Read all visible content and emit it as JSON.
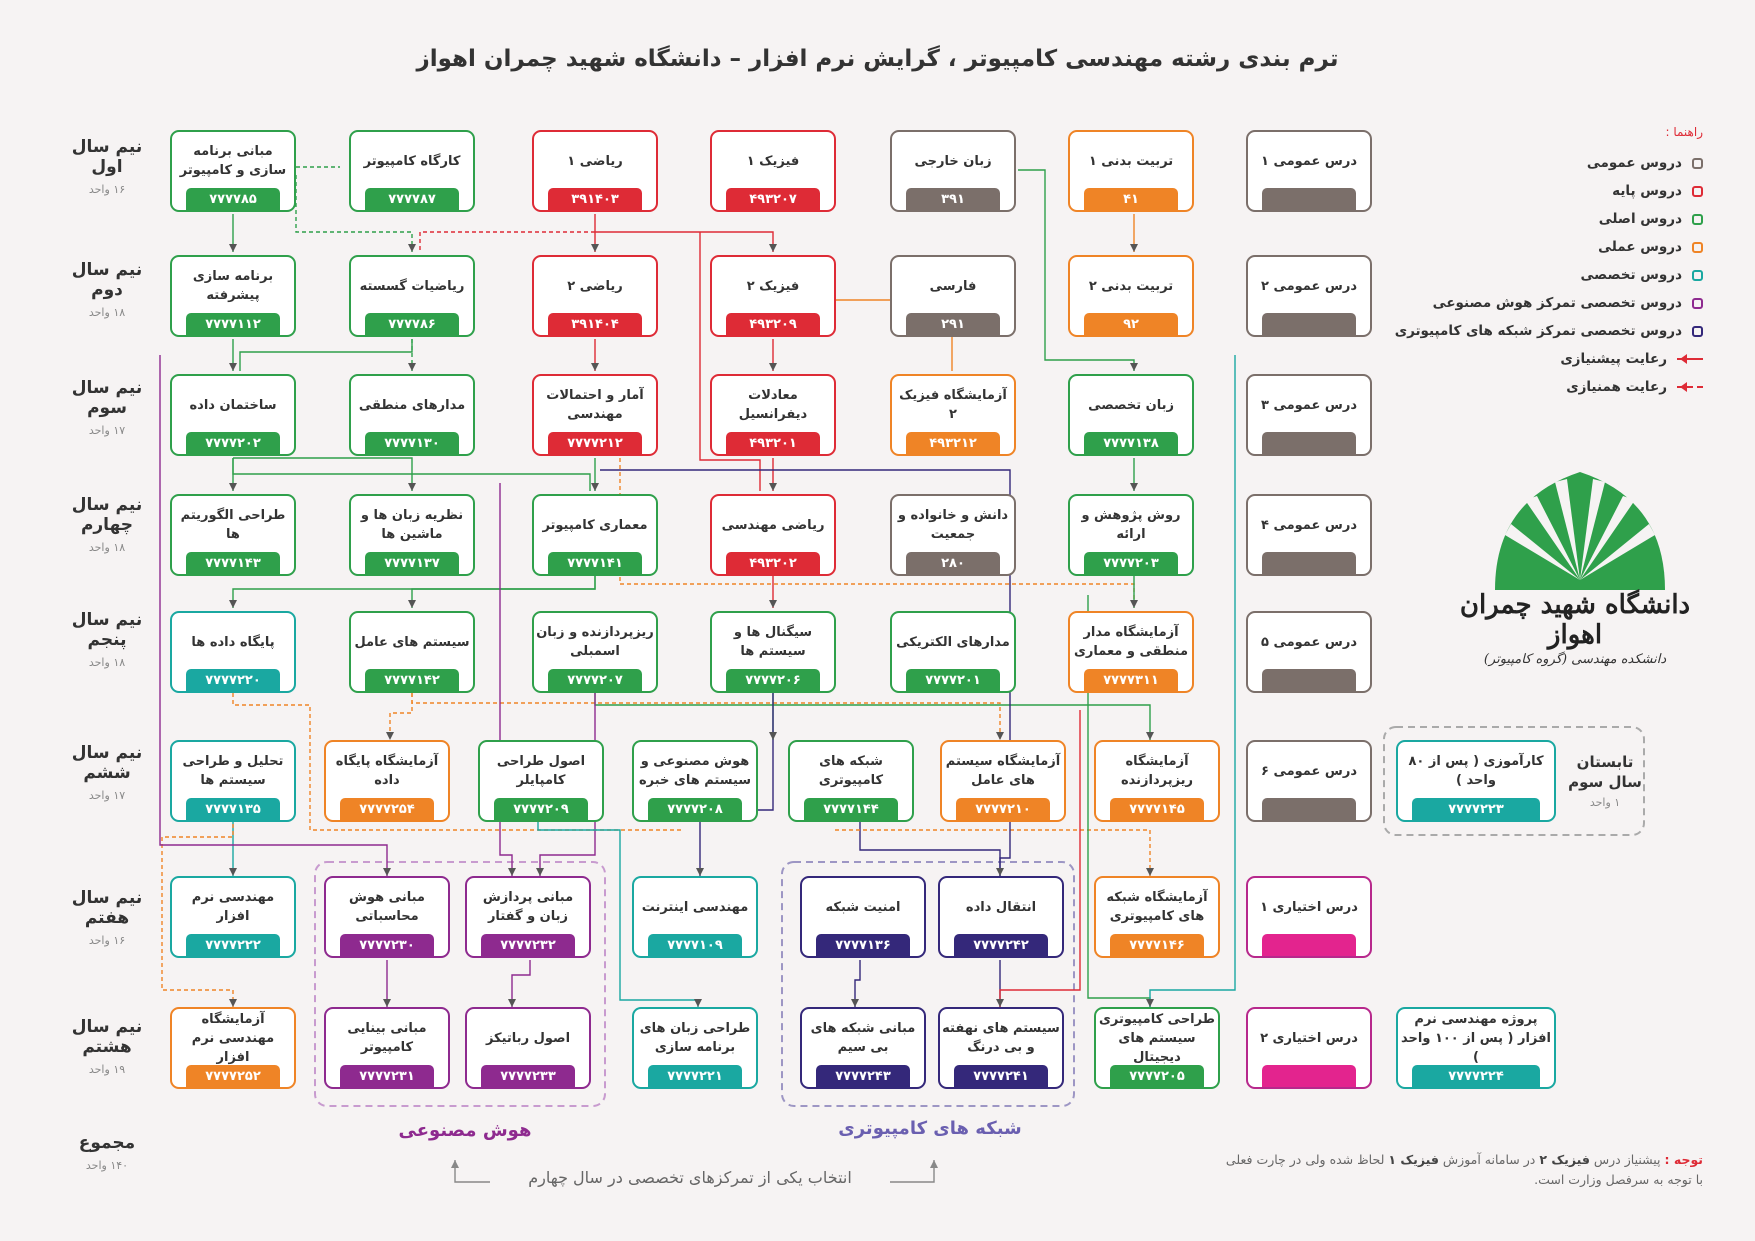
{
  "title": "ترم بندی رشته مهندسی کامپیوتر ، گرایش نرم افزار – دانشگاه شهید چمران اهواز",
  "rows": [
    {
      "title": "نیم سال اول",
      "units": "۱۶ واحد"
    },
    {
      "title": "نیم سال دوم",
      "units": "۱۸ واحد"
    },
    {
      "title": "نیم سال سوم",
      "units": "۱۷ واحد"
    },
    {
      "title": "نیم سال چهارم",
      "units": "۱۸ واحد"
    },
    {
      "title": "نیم سال پنجم",
      "units": "۱۸ واحد"
    },
    {
      "title": "نیم سال ششم",
      "units": "۱۷ واحد"
    },
    {
      "title": "نیم سال هفتم",
      "units": "۱۶ واحد"
    },
    {
      "title": "نیم سال هشتم",
      "units": "۱۹ واحد"
    },
    {
      "title": "مجموع",
      "units": "۱۴۰ واحد"
    }
  ],
  "courses": [
    {
      "name": "مبانی برنامه سازی و کامپیوتر",
      "code": "۷۷۷۷۸۵",
      "cat": "core"
    },
    {
      "name": "کارگاه کامپیوتر",
      "code": "۷۷۷۷۸۷",
      "cat": "core"
    },
    {
      "name": "ریاضی ۱",
      "code": "۳۹۱۴۰۳",
      "cat": "base"
    },
    {
      "name": "فیزیک ۱",
      "code": "۴۹۳۲۰۷",
      "cat": "base"
    },
    {
      "name": "زبان خارجی",
      "code": "۳۹۱",
      "cat": "gen"
    },
    {
      "name": "تربیت بدنی ۱",
      "code": "۴۱",
      "cat": "prac"
    },
    {
      "name": "درس عمومی ۱",
      "code": "",
      "cat": "gen"
    },
    {
      "name": "برنامه سازی پیشرفته",
      "code": "۷۷۷۷۱۱۲",
      "cat": "core"
    },
    {
      "name": "ریاضیات گسسته",
      "code": "۷۷۷۷۸۶",
      "cat": "core"
    },
    {
      "name": "ریاضی ۲",
      "code": "۳۹۱۴۰۴",
      "cat": "base"
    },
    {
      "name": "فیزیک ۲",
      "code": "۴۹۳۲۰۹",
      "cat": "base"
    },
    {
      "name": "فارسی",
      "code": "۲۹۱",
      "cat": "gen"
    },
    {
      "name": "تربیت بدنی ۲",
      "code": "۹۲",
      "cat": "prac"
    },
    {
      "name": "درس عمومی ۲",
      "code": "",
      "cat": "gen"
    },
    {
      "name": "ساختمان داده",
      "code": "۷۷۷۷۲۰۲",
      "cat": "core"
    },
    {
      "name": "مدارهای منطقی",
      "code": "۷۷۷۷۱۳۰",
      "cat": "core"
    },
    {
      "name": "آمار و احتمالات مهندسی",
      "code": "۷۷۷۷۲۱۲",
      "cat": "base"
    },
    {
      "name": "معادلات دیفرانسیل",
      "code": "۴۹۳۲۰۱",
      "cat": "base"
    },
    {
      "name": "آزمایشگاه فیزیک ۲",
      "code": "۴۹۳۲۱۲",
      "cat": "prac"
    },
    {
      "name": "زبان تخصصی",
      "code": "۷۷۷۷۱۳۸",
      "cat": "core"
    },
    {
      "name": "درس عمومی ۳",
      "code": "",
      "cat": "gen"
    },
    {
      "name": "طراحی الگوریتم ها",
      "code": "۷۷۷۷۱۴۳",
      "cat": "core"
    },
    {
      "name": "نظریه زبان ها و ماشین ها",
      "code": "۷۷۷۷۱۳۷",
      "cat": "core"
    },
    {
      "name": "معماری کامپیوتر",
      "code": "۷۷۷۷۱۴۱",
      "cat": "core"
    },
    {
      "name": "ریاضی مهندسی",
      "code": "۴۹۳۲۰۲",
      "cat": "base"
    },
    {
      "name": "دانش و خانواده و جمعیت",
      "code": "۲۸۰",
      "cat": "gen"
    },
    {
      "name": "روش پژوهش و ارائه",
      "code": "۷۷۷۷۲۰۳",
      "cat": "core"
    },
    {
      "name": "درس عمومی ۴",
      "code": "",
      "cat": "gen"
    },
    {
      "name": "پایگاه داده ها",
      "code": "۷۷۷۷۲۲۰",
      "cat": "spec"
    },
    {
      "name": "سیستم های عامل",
      "code": "۷۷۷۷۱۴۲",
      "cat": "core"
    },
    {
      "name": "ریزپردازنده و زبان اسمبلی",
      "code": "۷۷۷۷۲۰۷",
      "cat": "core"
    },
    {
      "name": "سیگنال ها و سیستم ها",
      "code": "۷۷۷۷۲۰۶",
      "cat": "core"
    },
    {
      "name": "مدارهای الکتریکی",
      "code": "۷۷۷۷۲۰۱",
      "cat": "core"
    },
    {
      "name": "آزمایشگاه مدار منطقی و معماری",
      "code": "۷۷۷۷۳۱۱",
      "cat": "prac"
    },
    {
      "name": "درس عمومی ۵",
      "code": "",
      "cat": "gen"
    },
    {
      "name": "تحلیل و طراحی سیستم ها",
      "code": "۷۷۷۷۱۳۵",
      "cat": "spec"
    },
    {
      "name": "آزمایشگاه پایگاه داده",
      "code": "۷۷۷۷۲۵۴",
      "cat": "prac"
    },
    {
      "name": "اصول طراحی کامپایلر",
      "code": "۷۷۷۷۲۰۹",
      "cat": "core"
    },
    {
      "name": "هوش مصنوعی و سیستم های خبره",
      "code": "۷۷۷۷۲۰۸",
      "cat": "core"
    },
    {
      "name": "شبکه های کامپیوتری",
      "code": "۷۷۷۷۱۴۴",
      "cat": "core"
    },
    {
      "name": "آزمایشگاه سیستم های عامل",
      "code": "۷۷۷۷۲۱۰",
      "cat": "prac"
    },
    {
      "name": "آزمایشگاه ریزپردازنده",
      "code": "۷۷۷۷۱۴۵",
      "cat": "prac"
    },
    {
      "name": "درس عمومی ۶",
      "code": "",
      "cat": "gen"
    },
    {
      "name": "کارآموزی ( پس از ۸۰ واحد )",
      "code": "۷۷۷۷۲۲۳",
      "cat": "spec"
    },
    {
      "name": "مهندسی نرم افزار",
      "code": "۷۷۷۷۲۲۲",
      "cat": "spec"
    },
    {
      "name": "مبانی هوش محاسباتی",
      "code": "۷۷۷۷۲۳۰",
      "cat": "ai"
    },
    {
      "name": "مبانی پردازش زبان و گفتار",
      "code": "۷۷۷۷۲۳۲",
      "cat": "ai"
    },
    {
      "name": "مهندسی اینترنت",
      "code": "۷۷۷۷۱۰۹",
      "cat": "spec"
    },
    {
      "name": "امنیت شبکه",
      "code": "۷۷۷۷۱۳۶",
      "cat": "net"
    },
    {
      "name": "انتقال داده",
      "code": "۷۷۷۷۲۴۲",
      "cat": "net"
    },
    {
      "name": "آزمایشگاه شبکه های کامپیوتری",
      "code": "۷۷۷۷۱۴۶",
      "cat": "prac"
    },
    {
      "name": "درس اختیاری ۱",
      "code": "",
      "cat": "elec"
    },
    {
      "name": "آزمایشگاه مهندسی نرم افزار",
      "code": "۷۷۷۷۲۵۲",
      "cat": "prac"
    },
    {
      "name": "مبانی بینایی کامپیوتر",
      "code": "۷۷۷۷۲۳۱",
      "cat": "ai"
    },
    {
      "name": "اصول رباتیکز",
      "code": "۷۷۷۷۲۳۳",
      "cat": "ai"
    },
    {
      "name": "طراحی زبان های برنامه سازی",
      "code": "۷۷۷۷۲۲۱",
      "cat": "spec"
    },
    {
      "name": "مبانی شبکه های بی سیم",
      "code": "۷۷۷۷۲۴۳",
      "cat": "net"
    },
    {
      "name": "سیستم های نهفته و بی درنگ",
      "code": "۷۷۷۷۲۴۱",
      "cat": "net"
    },
    {
      "name": "طراحی کامپیوتری سیستم های دیجیتال",
      "code": "۷۷۷۷۲۰۵",
      "cat": "core"
    },
    {
      "name": "درس اختیاری ۲",
      "code": "",
      "cat": "elec"
    },
    {
      "name": "پروژه مهندسی نرم افزار ( پس از ۱۰۰ واحد )",
      "code": "۷۷۷۷۲۲۴",
      "cat": "spec"
    }
  ],
  "legend": {
    "heading": "راهنما :",
    "items": [
      {
        "label": "دروس عمومی",
        "color": "#7b6f6a"
      },
      {
        "label": "دروس پایه",
        "color": "#de2b36"
      },
      {
        "label": "دروس اصلی",
        "color": "#2fa04b"
      },
      {
        "label": "دروس عملی",
        "color": "#ef8426"
      },
      {
        "label": "دروس تخصصی",
        "color": "#1aa8a1"
      },
      {
        "label": "دروس تخصصی تمرکز هوش مصنوعی",
        "color": "#8e2a8f"
      },
      {
        "label": "دروس تخصصی تمرکز شبکه های کامپیوتری",
        "color": "#34287a"
      }
    ],
    "prereq": "رعایت پیشنیازی",
    "coreq": "رعایت همنیازی"
  },
  "summer": {
    "title": "تابستان سال سوم",
    "units": "۱ واحد"
  },
  "logo": {
    "name": "دانشگاه شهید چمران اهواز",
    "sub": "دانشکده مهندسی (گروه کامپیوتر)"
  },
  "groups": {
    "ai": "هوش مصنوعی",
    "net": "شبکه های کامپیوتری",
    "choice": "انتخاب یکی از تمرکزهای تخصصی در سال چهارم"
  },
  "note": {
    "label": "توجه :",
    "text1": "پیشنیاز درس",
    "bold1": "فیزیک ۲",
    "text2": "در سامانه آموزش",
    "bold2": "فیزیک ۱",
    "text3": "لحاظ شده ولی در چارت فعلی",
    "line2": "با توجه به سرفصل وزارت است."
  },
  "colors": {
    "gen": "#7b6f6a",
    "base": "#de2b36",
    "core": "#2fa04b",
    "prac": "#ef8426",
    "spec": "#1aa8a1",
    "ai": "#8e2a8f",
    "net": "#34287a",
    "elec": "#e3248e"
  }
}
